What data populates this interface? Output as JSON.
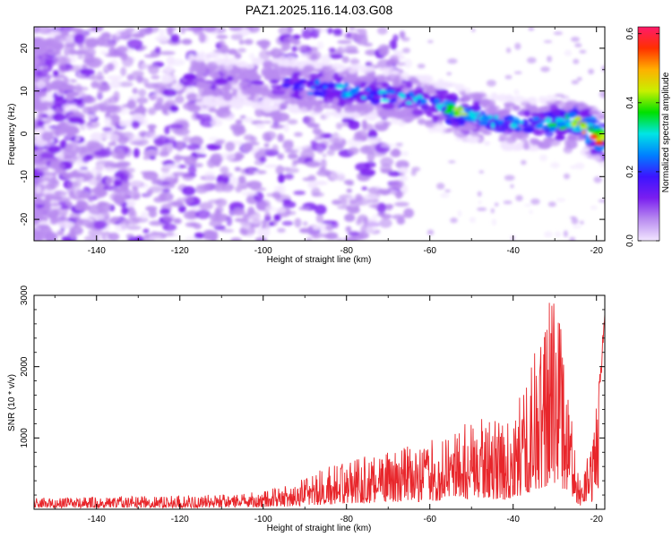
{
  "title": "PAZ1.2025.116.14.03.G08",
  "colors": {
    "line": "#e8262b",
    "colormap": [
      "#f2e6ff",
      "#b98cf0",
      "#7a1ef0",
      "#3c14ff",
      "#0080ff",
      "#00e5e5",
      "#00e000",
      "#c8f000",
      "#ffb000",
      "#ff3000",
      "#ff1a6a"
    ]
  },
  "chart_data": [
    {
      "type": "heatmap",
      "xlabel": "Height of straight line (km)",
      "ylabel": "Frequency (Hz)",
      "xlim": [
        -155,
        -18
      ],
      "ylim": [
        -25,
        25
      ],
      "x_ticks": [
        -140,
        -120,
        -100,
        -80,
        -60,
        -40,
        -20
      ],
      "y_ticks": [
        -20,
        -10,
        0,
        10,
        20
      ],
      "colorbar": {
        "label": "Normalized spectral amplitude",
        "range": [
          0,
          0.62
        ],
        "ticks": [
          0.0,
          0.2,
          0.4,
          0.6
        ]
      },
      "ridge": {
        "description_points": [
          {
            "x": -115,
            "y": 13,
            "amp": 0.15
          },
          {
            "x": -100,
            "y": 12,
            "amp": 0.15
          },
          {
            "x": -90,
            "y": 11,
            "amp": 0.25
          },
          {
            "x": -80,
            "y": 10,
            "amp": 0.3
          },
          {
            "x": -70,
            "y": 9,
            "amp": 0.3
          },
          {
            "x": -60,
            "y": 7,
            "amp": 0.3
          },
          {
            "x": -52,
            "y": 5,
            "amp": 0.45
          },
          {
            "x": -45,
            "y": 3,
            "amp": 0.3
          },
          {
            "x": -35,
            "y": 2,
            "amp": 0.3
          },
          {
            "x": -25,
            "y": 3,
            "amp": 0.45
          },
          {
            "x": -19,
            "y": -1,
            "amp": 0.6
          }
        ]
      }
    },
    {
      "type": "line",
      "xlabel": "Height of straight line (km)",
      "ylabel": "SNR (10 * v/v)",
      "xlim": [
        -155,
        -18
      ],
      "ylim": [
        0,
        3000
      ],
      "x_ticks": [
        -140,
        -120,
        -100,
        -80,
        -60,
        -40,
        -20
      ],
      "y_ticks": [
        1000,
        2000,
        3000
      ],
      "series": [
        {
          "envelope": [
            {
              "x": -155,
              "y": 150
            },
            {
              "x": -130,
              "y": 170
            },
            {
              "x": -105,
              "y": 200
            },
            {
              "x": -95,
              "y": 300
            },
            {
              "x": -85,
              "y": 550
            },
            {
              "x": -75,
              "y": 700
            },
            {
              "x": -65,
              "y": 850
            },
            {
              "x": -55,
              "y": 1000
            },
            {
              "x": -48,
              "y": 1250
            },
            {
              "x": -42,
              "y": 1100
            },
            {
              "x": -37,
              "y": 1700
            },
            {
              "x": -33,
              "y": 2500
            },
            {
              "x": -30,
              "y": 3000
            },
            {
              "x": -27,
              "y": 1700
            },
            {
              "x": -24,
              "y": 400
            },
            {
              "x": -21,
              "y": 850
            },
            {
              "x": -19,
              "y": 2100
            },
            {
              "x": -18,
              "y": 2800
            }
          ]
        }
      ]
    }
  ]
}
